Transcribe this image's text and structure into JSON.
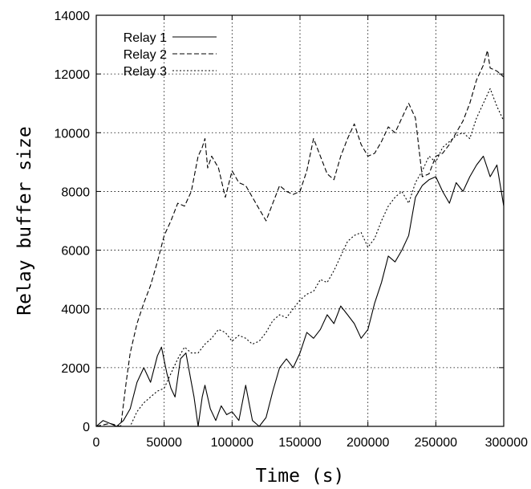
{
  "chart_data": {
    "type": "line",
    "title": "",
    "xlabel": "Time (s)",
    "ylabel": "Relay buffer size",
    "xlim": [
      0,
      300000
    ],
    "ylim": [
      0,
      14000
    ],
    "xticks": [
      "0",
      "50000",
      "100000",
      "150000",
      "200000",
      "250000",
      "300000"
    ],
    "yticks": [
      "0",
      "2000",
      "4000",
      "6000",
      "8000",
      "10000",
      "12000",
      "14000"
    ],
    "grid": true,
    "legend": "top-left",
    "series": [
      {
        "name": "Relay 1",
        "style": "solid",
        "x": [
          0,
          5000,
          10000,
          15000,
          20000,
          25000,
          30000,
          35000,
          40000,
          45000,
          48000,
          52000,
          55000,
          58000,
          62000,
          66000,
          70000,
          72000,
          75000,
          78000,
          80000,
          84000,
          88000,
          92000,
          96000,
          100000,
          105000,
          110000,
          115000,
          120000,
          125000,
          130000,
          135000,
          140000,
          145000,
          150000,
          155000,
          160000,
          165000,
          170000,
          175000,
          180000,
          185000,
          190000,
          195000,
          200000,
          205000,
          210000,
          215000,
          220000,
          225000,
          230000,
          235000,
          240000,
          245000,
          250000,
          255000,
          260000,
          265000,
          270000,
          275000,
          280000,
          285000,
          290000,
          295000,
          300000
        ],
        "values": [
          0,
          200,
          100,
          0,
          200,
          600,
          1500,
          2000,
          1500,
          2400,
          2700,
          1800,
          1300,
          1000,
          2300,
          2500,
          1500,
          1000,
          0,
          1000,
          1400,
          600,
          200,
          700,
          400,
          500,
          200,
          1400,
          200,
          0,
          300,
          1200,
          2000,
          2300,
          2000,
          2500,
          3200,
          3000,
          3300,
          3800,
          3500,
          4100,
          3800,
          3500,
          3000,
          3300,
          4200,
          4900,
          5800,
          5600,
          6000,
          6500,
          7800,
          8200,
          8400,
          8500,
          8000,
          7600,
          8300,
          8000,
          8500,
          8900,
          9200,
          8500,
          8900,
          7500
        ]
      },
      {
        "name": "Relay 2",
        "style": "dashed",
        "x": [
          0,
          10000,
          18000,
          22000,
          25000,
          30000,
          35000,
          40000,
          45000,
          50000,
          55000,
          60000,
          65000,
          70000,
          75000,
          78000,
          80000,
          82000,
          85000,
          90000,
          95000,
          100000,
          105000,
          110000,
          115000,
          120000,
          125000,
          130000,
          135000,
          140000,
          145000,
          150000,
          155000,
          160000,
          165000,
          170000,
          175000,
          180000,
          185000,
          190000,
          195000,
          200000,
          205000,
          210000,
          215000,
          220000,
          225000,
          230000,
          235000,
          240000,
          245000,
          250000,
          255000,
          260000,
          265000,
          270000,
          275000,
          280000,
          285000,
          288000,
          290000,
          295000,
          300000
        ],
        "values": [
          0,
          100,
          0,
          1500,
          2500,
          3500,
          4200,
          4800,
          5600,
          6500,
          7000,
          7600,
          7500,
          8000,
          9200,
          9500,
          9800,
          8800,
          9200,
          8800,
          7800,
          8700,
          8300,
          8200,
          7800,
          7400,
          7000,
          7600,
          8200,
          8000,
          7900,
          8000,
          8700,
          9800,
          9200,
          8600,
          8400,
          9200,
          9800,
          10300,
          9600,
          9200,
          9300,
          9700,
          10200,
          10000,
          10500,
          11000,
          10500,
          8500,
          8600,
          9200,
          9300,
          9600,
          10000,
          10400,
          11000,
          11800,
          12300,
          12800,
          12200,
          12100,
          11900
        ]
      },
      {
        "name": "Relay 3",
        "style": "dotted",
        "x": [
          0,
          10000,
          20000,
          25000,
          30000,
          35000,
          40000,
          45000,
          50000,
          55000,
          60000,
          65000,
          70000,
          75000,
          80000,
          85000,
          90000,
          95000,
          100000,
          105000,
          110000,
          115000,
          120000,
          125000,
          130000,
          135000,
          140000,
          145000,
          150000,
          155000,
          160000,
          165000,
          170000,
          175000,
          180000,
          185000,
          190000,
          195000,
          200000,
          205000,
          210000,
          215000,
          220000,
          225000,
          230000,
          235000,
          240000,
          245000,
          250000,
          255000,
          260000,
          265000,
          270000,
          275000,
          280000,
          285000,
          290000,
          295000,
          300000
        ],
        "values": [
          0,
          0,
          0,
          0,
          500,
          800,
          1000,
          1200,
          1300,
          1800,
          2300,
          2700,
          2500,
          2500,
          2800,
          3000,
          3300,
          3200,
          2900,
          3100,
          3000,
          2800,
          2900,
          3200,
          3600,
          3800,
          3700,
          4000,
          4300,
          4500,
          4600,
          5000,
          4900,
          5300,
          5800,
          6300,
          6500,
          6600,
          6100,
          6400,
          7000,
          7500,
          7800,
          8000,
          7600,
          8300,
          8700,
          9200,
          9000,
          9500,
          9700,
          9900,
          10000,
          9800,
          10500,
          11000,
          11500,
          10900,
          10400
        ]
      }
    ]
  }
}
